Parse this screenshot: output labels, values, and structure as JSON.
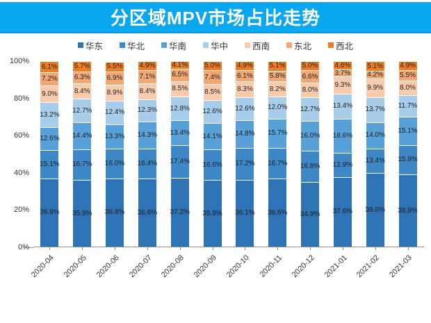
{
  "header": {
    "title": "分区域MPV市场占比走势"
  },
  "colors": {
    "banner": "#09a7f0",
    "banner_edge": "#0d94d8",
    "axis": "#8c8c8c",
    "value_label": "#1f1f1f"
  },
  "chart_data": {
    "type": "bar",
    "stacked": true,
    "title": "分区域MPV市场占比走势",
    "xlabel": "",
    "ylabel": "",
    "ylim": [
      0,
      100
    ],
    "grid": false,
    "legend_position": "top",
    "value_suffix": "%",
    "yticks": [
      "0%",
      "20%",
      "40%",
      "60%",
      "80%",
      "100%"
    ],
    "categories": [
      "2020-04",
      "2020-05",
      "2020-06",
      "2020-07",
      "2020-08",
      "2020-09",
      "2020-10",
      "2020-11",
      "2020-12",
      "2021-01",
      "2021-02",
      "2021-03"
    ],
    "series": [
      {
        "name": "华东",
        "color": "#2e73b6",
        "values": [
          36.9,
          35.9,
          36.8,
          36.6,
          37.2,
          35.8,
          36.1,
          36.6,
          34.9,
          37.6,
          39.6,
          38.9
        ]
      },
      {
        "name": "华北",
        "color": "#3e87c7",
        "values": [
          15.1,
          16.7,
          16.0,
          16.4,
          17.4,
          16.6,
          17.2,
          16.7,
          16.8,
          12.9,
          13.4,
          15.9
        ]
      },
      {
        "name": "华南",
        "color": "#57a0d8",
        "values": [
          12.6,
          14.4,
          13.3,
          14.3,
          13.4,
          14.1,
          14.8,
          15.7,
          16.0,
          18.6,
          14.0,
          15.1
        ]
      },
      {
        "name": "华中",
        "color": "#a8cdeb",
        "values": [
          13.2,
          12.7,
          12.4,
          12.3,
          12.8,
          12.6,
          12.6,
          12.0,
          12.7,
          13.4,
          13.7,
          11.7
        ]
      },
      {
        "name": "西南",
        "color": "#f8cbad",
        "values": [
          9.0,
          8.4,
          8.9,
          8.4,
          8.5,
          8.5,
          8.3,
          8.2,
          8.0,
          9.3,
          9.9,
          8.0
        ]
      },
      {
        "name": "东北",
        "color": "#f2a875",
        "values": [
          7.2,
          6.3,
          6.9,
          7.1,
          6.5,
          7.4,
          6.1,
          5.8,
          6.6,
          3.7,
          4.2,
          5.5
        ]
      },
      {
        "name": "西北",
        "color": "#ee7c23",
        "values": [
          6.1,
          5.7,
          5.5,
          4.9,
          4.1,
          5.0,
          4.9,
          5.1,
          5.0,
          4.6,
          5.1,
          4.9
        ]
      }
    ]
  }
}
